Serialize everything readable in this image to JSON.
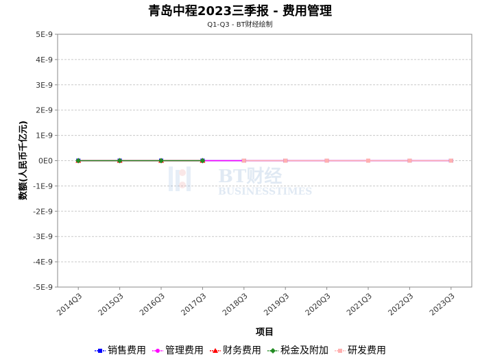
{
  "chart_data": {
    "type": "line",
    "title": "青岛中程2023三季报 - 费用管理",
    "subtitle": "Q1-Q3 - BT财经绘制",
    "xlabel": "项目",
    "ylabel": "数额(人民币千亿元)",
    "categories": [
      "2014Q3",
      "2015Q3",
      "2016Q3",
      "2017Q3",
      "2018Q3",
      "2019Q3",
      "2020Q3",
      "2021Q3",
      "2022Q3",
      "2023Q3"
    ],
    "ylim": [
      -5e-09,
      5e-09
    ],
    "yticks": [
      "5E-9",
      "4E-9",
      "3E-9",
      "2E-9",
      "1E-9",
      "0E0",
      "-1E-9",
      "-2E-9",
      "-3E-9",
      "-4E-9",
      "-5E-9"
    ],
    "grid": true,
    "legend_position": "bottom",
    "series": [
      {
        "name": "销售费用",
        "color": "#0000ff",
        "marker": "square",
        "values": [
          0,
          0,
          0,
          0,
          0,
          0,
          0,
          0,
          0,
          0
        ]
      },
      {
        "name": "管理费用",
        "color": "#ff00ff",
        "marker": "circle",
        "values": [
          0,
          0,
          0,
          0,
          0,
          0,
          0,
          0,
          0,
          0
        ]
      },
      {
        "name": "财务费用",
        "color": "#ff0000",
        "marker": "triangle",
        "values": [
          0,
          0,
          0,
          0,
          null,
          null,
          null,
          null,
          null,
          null
        ]
      },
      {
        "name": "税金及附加",
        "color": "#228b22",
        "marker": "diamond",
        "values": [
          0,
          0,
          0,
          0,
          null,
          null,
          null,
          null,
          null,
          null
        ]
      },
      {
        "name": "研发费用",
        "color": "#ffb0b0",
        "marker": "square",
        "values": [
          null,
          null,
          null,
          null,
          0,
          0,
          0,
          0,
          0,
          0
        ]
      }
    ],
    "watermark": {
      "logo_text": "BT财经",
      "sub_text": "BUSINESSTIMES"
    }
  }
}
